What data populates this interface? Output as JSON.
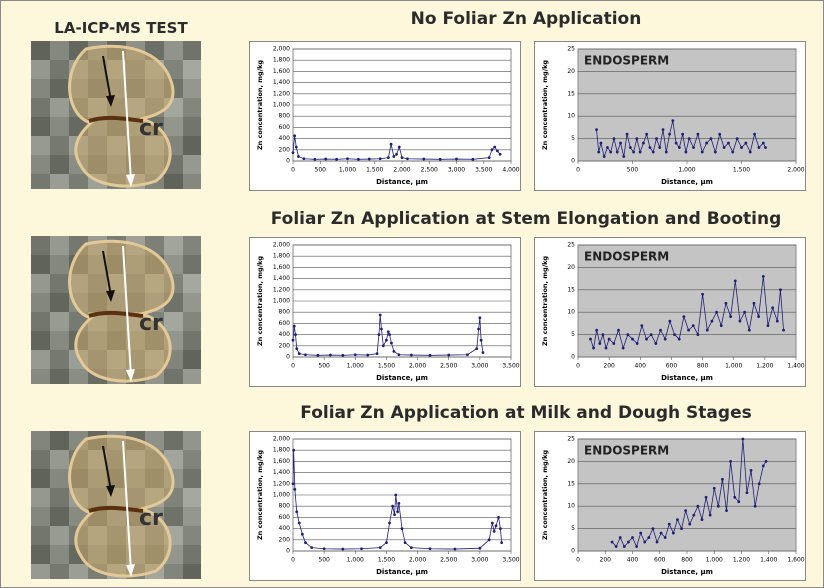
{
  "header": {
    "title": "LA-ICP-MS TEST"
  },
  "sections": [
    {
      "title": "No Foliar Zn Application"
    },
    {
      "title": "Foliar Zn Application at Stem Elongation and Booting"
    },
    {
      "title": "Foliar Zn Application at Milk and Dough Stages"
    }
  ],
  "images": [
    {
      "label": "cr"
    },
    {
      "label": "cr"
    },
    {
      "label": "cr"
    }
  ],
  "chart_data": [
    {
      "type": "line",
      "xlabel": "Distance, µm",
      "ylabel": "Zn concentration, mg/kg",
      "color": "#1f1f78",
      "plot_bg": "#ffffff",
      "grid": true,
      "x": [
        0,
        30,
        60,
        100,
        200,
        400,
        600,
        800,
        1000,
        1200,
        1400,
        1600,
        1750,
        1800,
        1850,
        1900,
        1950,
        2000,
        2100,
        2400,
        2700,
        3000,
        3300,
        3600,
        3650,
        3700,
        3750,
        3800
      ],
      "values": [
        150,
        450,
        250,
        80,
        40,
        30,
        35,
        30,
        40,
        30,
        35,
        40,
        60,
        300,
        80,
        120,
        250,
        60,
        40,
        35,
        30,
        35,
        30,
        60,
        200,
        250,
        180,
        120
      ],
      "xlim": [
        0,
        4000
      ],
      "xticks": [
        0,
        500,
        {
          "value": 1000,
          "label": "1,000"
        },
        {
          "value": 1500,
          "label": "1,500"
        },
        {
          "value": 2000,
          "label": "2,000"
        },
        {
          "value": 2500,
          "label": "2,500"
        },
        {
          "value": 3000,
          "label": "3,000"
        },
        {
          "value": 3500,
          "label": "3,500"
        },
        {
          "value": 4000,
          "label": "4,000"
        }
      ],
      "ylim": [
        0,
        2000
      ],
      "yticks": [
        0,
        200,
        400,
        600,
        800,
        {
          "value": 1000,
          "label": "1,000"
        },
        {
          "value": 1200,
          "label": "1,200"
        },
        {
          "value": 1400,
          "label": "1,400"
        },
        {
          "value": 1600,
          "label": "1,600"
        },
        {
          "value": 1800,
          "label": "1,800"
        },
        {
          "value": 2000,
          "label": "2,000"
        }
      ]
    },
    {
      "type": "line",
      "annotation": "ENDOSPERM",
      "xlabel": "Distance, µm",
      "ylabel": "Zn concentration, mg/kg",
      "color": "#1f1f78",
      "plot_bg": "#c4c4c4",
      "grid": true,
      "x": [
        170,
        190,
        210,
        240,
        270,
        300,
        330,
        360,
        390,
        420,
        450,
        480,
        510,
        540,
        570,
        600,
        630,
        660,
        690,
        720,
        750,
        780,
        810,
        840,
        870,
        900,
        930,
        960,
        990,
        1020,
        1060,
        1100,
        1140,
        1180,
        1220,
        1260,
        1300,
        1340,
        1380,
        1420,
        1460,
        1500,
        1540,
        1580,
        1620,
        1660,
        1700,
        1720
      ],
      "values": [
        7,
        2,
        4,
        1,
        3,
        2,
        5,
        2,
        4,
        1,
        6,
        3,
        2,
        5,
        2,
        4,
        6,
        3,
        2,
        5,
        3,
        7,
        2,
        6,
        9,
        4,
        3,
        6,
        2,
        5,
        3,
        6,
        2,
        4,
        5,
        2,
        6,
        3,
        4,
        2,
        5,
        3,
        4,
        2,
        6,
        3,
        4,
        3
      ],
      "xlim": [
        0,
        2000
      ],
      "xticks": [
        0,
        500,
        {
          "value": 1000,
          "label": "1,000"
        },
        {
          "value": 1500,
          "label": "1,500"
        },
        {
          "value": 2000,
          "label": "2,000"
        }
      ],
      "ylim": [
        0,
        25
      ],
      "yticks": [
        0,
        5,
        10,
        15,
        20,
        25
      ]
    },
    {
      "type": "line",
      "xlabel": "Distance, µm",
      "ylabel": "Zn concentration, mg/kg",
      "color": "#1f1f78",
      "plot_bg": "#ffffff",
      "grid": true,
      "x": [
        0,
        20,
        40,
        60,
        100,
        200,
        400,
        600,
        800,
        1000,
        1200,
        1350,
        1380,
        1400,
        1420,
        1450,
        1500,
        1530,
        1550,
        1580,
        1620,
        1700,
        1900,
        2200,
        2500,
        2800,
        2950,
        2980,
        3000,
        3020,
        3050
      ],
      "values": [
        300,
        550,
        400,
        150,
        60,
        40,
        30,
        35,
        30,
        40,
        35,
        60,
        400,
        750,
        500,
        200,
        300,
        450,
        400,
        250,
        100,
        40,
        35,
        30,
        35,
        40,
        150,
        500,
        700,
        300,
        80
      ],
      "xlim": [
        0,
        3500
      ],
      "xticks": [
        0,
        500,
        {
          "value": 1000,
          "label": "1,000"
        },
        {
          "value": 1500,
          "label": "1,500"
        },
        {
          "value": 2000,
          "label": "2,000"
        },
        {
          "value": 2500,
          "label": "2,500"
        },
        {
          "value": 3000,
          "label": "3,000"
        },
        {
          "value": 3500,
          "label": "3,500"
        }
      ],
      "ylim": [
        0,
        2000
      ],
      "yticks": [
        0,
        200,
        400,
        600,
        800,
        {
          "value": 1000,
          "label": "1,000"
        },
        {
          "value": 1200,
          "label": "1,200"
        },
        {
          "value": 1400,
          "label": "1,400"
        },
        {
          "value": 1600,
          "label": "1,600"
        },
        {
          "value": 1800,
          "label": "1,800"
        },
        {
          "value": 2000,
          "label": "2,000"
        }
      ]
    },
    {
      "type": "line",
      "annotation": "ENDOSPERM",
      "xlabel": "Distance, µm",
      "ylabel": "Zn concentration, mg/kg",
      "color": "#1f1f78",
      "plot_bg": "#c4c4c4",
      "grid": true,
      "x": [
        80,
        100,
        120,
        140,
        160,
        180,
        200,
        230,
        260,
        290,
        320,
        350,
        380,
        410,
        440,
        470,
        500,
        530,
        560,
        590,
        620,
        650,
        680,
        710,
        740,
        770,
        800,
        830,
        860,
        890,
        920,
        950,
        980,
        1010,
        1040,
        1070,
        1100,
        1130,
        1160,
        1190,
        1220,
        1250,
        1280,
        1300,
        1320
      ],
      "values": [
        4,
        2,
        6,
        3,
        5,
        2,
        4,
        3,
        6,
        2,
        5,
        4,
        3,
        7,
        4,
        5,
        3,
        6,
        4,
        8,
        5,
        4,
        9,
        6,
        7,
        5,
        14,
        6,
        8,
        10,
        7,
        12,
        9,
        17,
        8,
        10,
        6,
        12,
        9,
        18,
        7,
        11,
        8,
        15,
        6
      ],
      "xlim": [
        0,
        1400
      ],
      "xticks": [
        0,
        200,
        400,
        600,
        800,
        {
          "value": 1000,
          "label": "1,000"
        },
        {
          "value": 1200,
          "label": "1,200"
        },
        {
          "value": 1400,
          "label": "1,400"
        }
      ],
      "ylim": [
        0,
        25
      ],
      "yticks": [
        0,
        5,
        10,
        15,
        20,
        25
      ]
    },
    {
      "type": "line",
      "xlabel": "Distance, µm",
      "ylabel": "Zn concentration, mg/kg",
      "color": "#1f1f78",
      "plot_bg": "#ffffff",
      "grid": true,
      "x": [
        0,
        10,
        30,
        60,
        100,
        150,
        200,
        300,
        500,
        800,
        1100,
        1400,
        1500,
        1550,
        1600,
        1630,
        1650,
        1680,
        1700,
        1750,
        1800,
        1900,
        2200,
        2600,
        3000,
        3150,
        3200,
        3230,
        3260,
        3300,
        3330,
        3350
      ],
      "values": [
        1200,
        1800,
        1100,
        700,
        500,
        300,
        150,
        60,
        40,
        35,
        40,
        60,
        150,
        500,
        800,
        650,
        1000,
        700,
        850,
        400,
        150,
        60,
        40,
        35,
        50,
        200,
        500,
        350,
        450,
        600,
        400,
        150
      ],
      "xlim": [
        0,
        3500
      ],
      "xticks": [
        0,
        500,
        {
          "value": 1000,
          "label": "1,000"
        },
        {
          "value": 1500,
          "label": "1,500"
        },
        {
          "value": 2000,
          "label": "2,000"
        },
        {
          "value": 2500,
          "label": "2,500"
        },
        {
          "value": 3000,
          "label": "3,000"
        },
        {
          "value": 3500,
          "label": "3,500"
        }
      ],
      "ylim": [
        0,
        2000
      ],
      "yticks": [
        0,
        200,
        400,
        600,
        800,
        {
          "value": 1000,
          "label": "1,000"
        },
        {
          "value": 1200,
          "label": "1,200"
        },
        {
          "value": 1400,
          "label": "1,400"
        },
        {
          "value": 1600,
          "label": "1,600"
        },
        {
          "value": 1800,
          "label": "1,800"
        },
        {
          "value": 2000,
          "label": "2,000"
        }
      ]
    },
    {
      "type": "line",
      "annotation": "ENDOSPERM",
      "xlabel": "Distance, µm",
      "ylabel": "Zn concentration, mg/kg",
      "color": "#1f1f78",
      "plot_bg": "#c4c4c4",
      "grid": true,
      "x": [
        250,
        280,
        310,
        340,
        370,
        400,
        430,
        460,
        490,
        520,
        550,
        580,
        610,
        640,
        670,
        700,
        730,
        760,
        790,
        820,
        850,
        880,
        910,
        940,
        970,
        1000,
        1030,
        1060,
        1090,
        1120,
        1150,
        1180,
        1210,
        1240,
        1270,
        1300,
        1330,
        1360,
        1380
      ],
      "values": [
        2,
        1,
        3,
        1,
        2,
        3,
        1,
        4,
        2,
        3,
        5,
        2,
        4,
        3,
        6,
        4,
        7,
        5,
        9,
        6,
        8,
        10,
        7,
        12,
        8,
        14,
        10,
        16,
        9,
        20,
        12,
        11,
        25,
        13,
        18,
        10,
        15,
        19,
        20
      ],
      "xlim": [
        0,
        1600
      ],
      "xticks": [
        0,
        200,
        400,
        600,
        800,
        {
          "value": 1000,
          "label": "1,000"
        },
        {
          "value": 1200,
          "label": "1,200"
        },
        {
          "value": 1400,
          "label": "1,400"
        },
        {
          "value": 1600,
          "label": "1,600"
        }
      ],
      "ylim": [
        0,
        25
      ],
      "yticks": [
        0,
        5,
        10,
        15,
        20,
        25
      ]
    }
  ]
}
